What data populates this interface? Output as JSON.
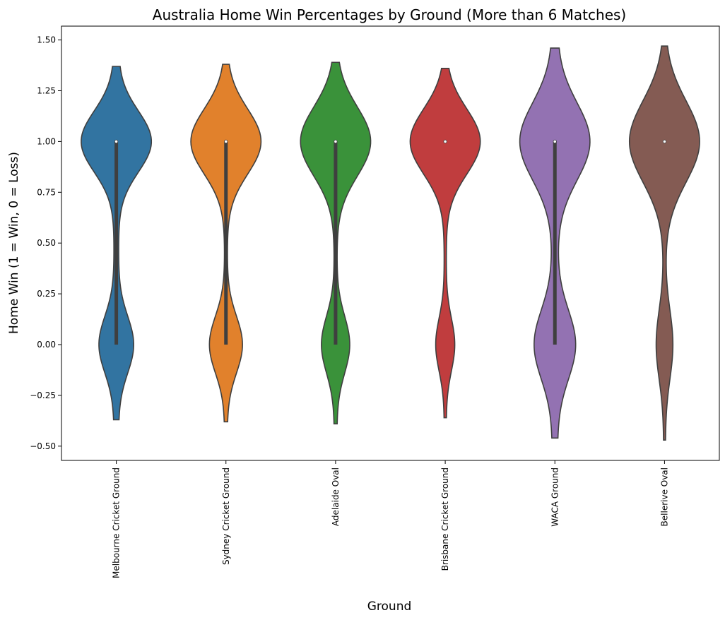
{
  "chart_data": {
    "type": "violin",
    "title": "Australia Home Win Percentages by Ground (More than 6 Matches)",
    "xlabel": "Ground",
    "ylabel": "Home Win (1 = Win, 0 = Loss)",
    "ylim": [
      -0.56,
      1.56
    ],
    "yticks": [
      -0.5,
      -0.25,
      0.0,
      0.25,
      0.5,
      0.75,
      1.0,
      1.25,
      1.5
    ],
    "ytick_labels": [
      "−0.50",
      "−0.25",
      "0.00",
      "0.25",
      "0.50",
      "0.75",
      "1.00",
      "1.25",
      "1.50"
    ],
    "grid": false,
    "legend": "none",
    "categories": [
      "Melbourne Cricket Ground",
      "Sydney Cricket Ground",
      "Adelaide Oval",
      "Brisbane Cricket Ground",
      "WACA Ground",
      "Bellerive Oval"
    ],
    "series": [
      {
        "category": "Melbourne Cricket Ground",
        "color": "#3274a1",
        "range": [
          -0.37,
          1.37
        ],
        "w_win": 1.0,
        "w_loss": 0.46,
        "w_mid": 0.07,
        "sd_win": 0.15,
        "sd_loss": 0.14,
        "median": 1.0,
        "q1": 0.0,
        "q3": 1.0
      },
      {
        "category": "Sydney Cricket Ground",
        "color": "#e1812c",
        "range": [
          -0.38,
          1.38
        ],
        "w_win": 1.0,
        "w_loss": 0.45,
        "w_mid": 0.04,
        "sd_win": 0.16,
        "sd_loss": 0.14,
        "median": 1.0,
        "q1": 0.0,
        "q3": 1.0
      },
      {
        "category": "Adelaide Oval",
        "color": "#3a923a",
        "range": [
          -0.39,
          1.39
        ],
        "w_win": 1.0,
        "w_loss": 0.38,
        "w_mid": 0.04,
        "sd_win": 0.17,
        "sd_loss": 0.14,
        "median": 1.0,
        "q1": 0.0,
        "q3": 1.0
      },
      {
        "category": "Brisbane Cricket Ground",
        "color": "#c03d3e",
        "range": [
          -0.36,
          1.36
        ],
        "w_win": 1.0,
        "w_loss": 0.25,
        "w_mid": 0.03,
        "sd_win": 0.16,
        "sd_loss": 0.13,
        "median": 1.0,
        "q1": 1.0,
        "q3": 1.0
      },
      {
        "category": "WACA Ground",
        "color": "#9372b2",
        "range": [
          -0.46,
          1.46
        ],
        "w_win": 1.0,
        "w_loss": 0.56,
        "w_mid": 0.08,
        "sd_win": 0.19,
        "sd_loss": 0.17,
        "median": 1.0,
        "q1": 0.0,
        "q3": 1.0
      },
      {
        "category": "Bellerive Oval",
        "color": "#845b53",
        "range": [
          -0.47,
          1.47
        ],
        "w_win": 1.0,
        "w_loss": 0.22,
        "w_mid": 0.025,
        "sd_win": 0.2,
        "sd_loss": 0.17,
        "median": 1.0,
        "q1": 1.0,
        "q3": 1.0
      }
    ]
  }
}
